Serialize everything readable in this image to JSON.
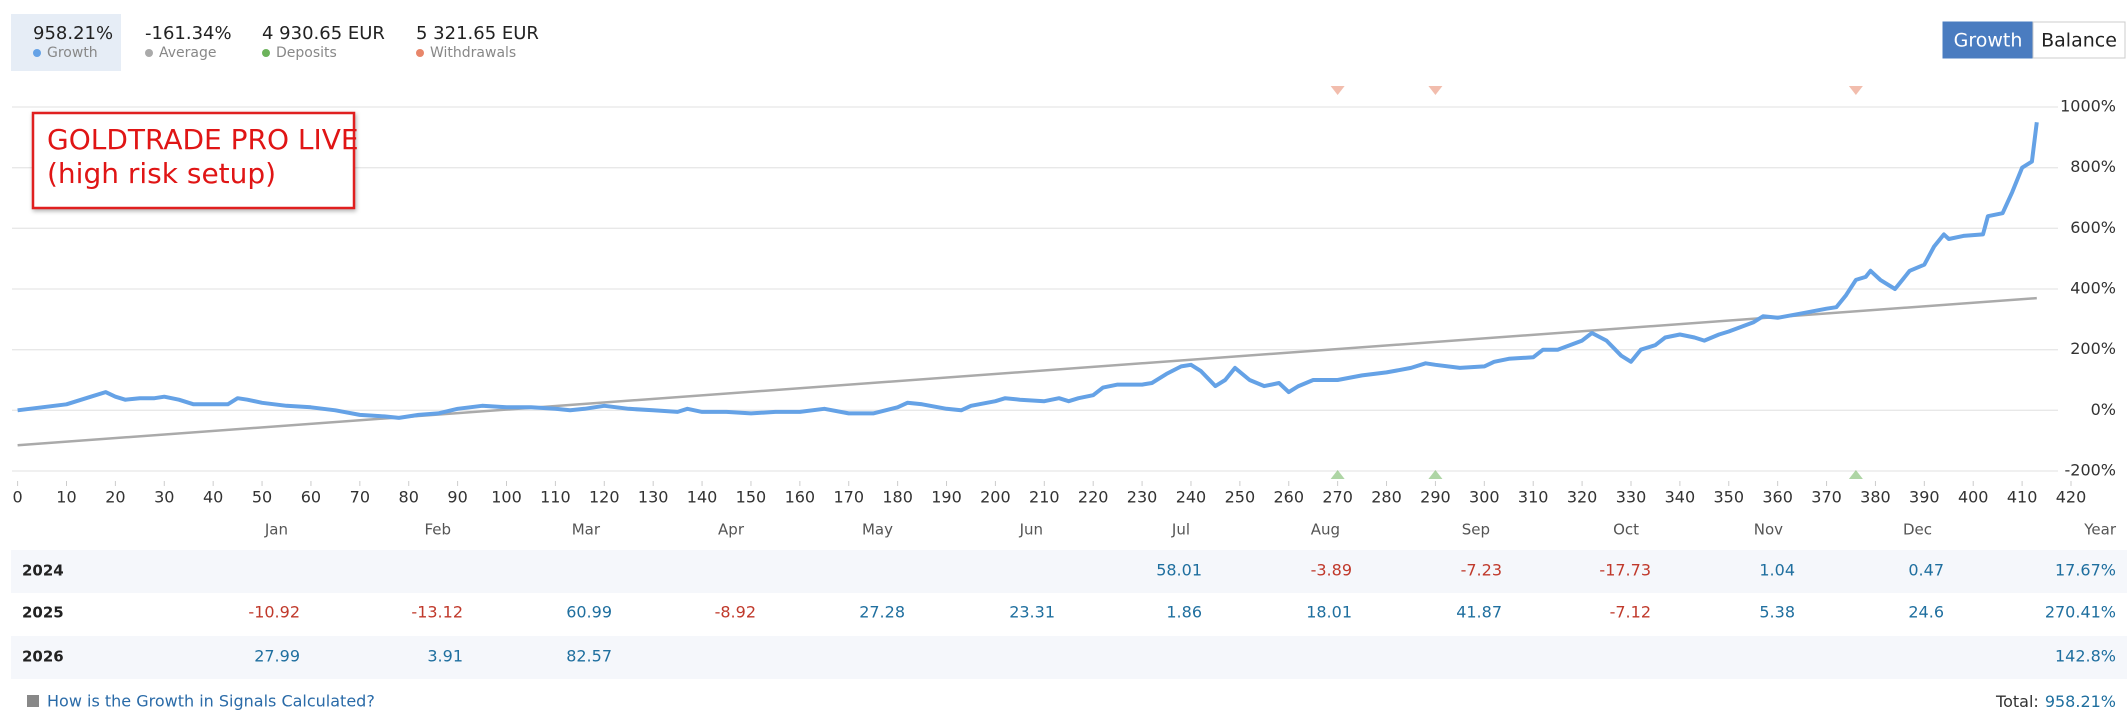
{
  "chart_data": {
    "type": "line",
    "annotation": [
      "GOLDTRADE PRO LIVE",
      "(high risk setup)"
    ],
    "xlim": [
      0,
      420
    ],
    "xticks": [
      0,
      10,
      20,
      30,
      40,
      50,
      60,
      70,
      80,
      90,
      100,
      110,
      120,
      130,
      140,
      150,
      160,
      170,
      180,
      190,
      200,
      210,
      220,
      230,
      240,
      250,
      260,
      270,
      280,
      290,
      300,
      310,
      320,
      330,
      340,
      350,
      360,
      370,
      380,
      390,
      400,
      410,
      420
    ],
    "ylim": [
      -200,
      1000
    ],
    "yticks": [
      {
        "value": -200,
        "label": "-200%"
      },
      {
        "value": 0,
        "label": "0%"
      },
      {
        "value": 200,
        "label": "200%"
      },
      {
        "value": 400,
        "label": "400%"
      },
      {
        "value": 600,
        "label": "600%"
      },
      {
        "value": 800,
        "label": "800%"
      },
      {
        "value": 1000,
        "label": "1000%"
      }
    ],
    "grid": true,
    "series": [
      {
        "name": "Growth",
        "summary": "958.21%",
        "color": "#65a2e6",
        "x": [
          0,
          5,
          10,
          15,
          18,
          20,
          22,
          25,
          28,
          30,
          33,
          36,
          40,
          43,
          45,
          47,
          50,
          55,
          60,
          65,
          70,
          75,
          78,
          82,
          86,
          90,
          95,
          100,
          105,
          110,
          113,
          116,
          120,
          125,
          130,
          135,
          137,
          140,
          145,
          150,
          155,
          160,
          165,
          170,
          175,
          180,
          182,
          185,
          190,
          193,
          195,
          200,
          202,
          205,
          210,
          213,
          215,
          217,
          220,
          222,
          225,
          230,
          232,
          235,
          238,
          240,
          242,
          245,
          247,
          249,
          252,
          255,
          258,
          260,
          262,
          265,
          270,
          275,
          280,
          285,
          288,
          290,
          295,
          300,
          302,
          305,
          310,
          312,
          315,
          320,
          322,
          325,
          328,
          330,
          332,
          335,
          337,
          340,
          343,
          345,
          348,
          350,
          355,
          357,
          360,
          365,
          370,
          372,
          374,
          376,
          378,
          379,
          381,
          384,
          387,
          390,
          392,
          394,
          395,
          398,
          402,
          403,
          406,
          408,
          410,
          412,
          413
        ],
        "values": [
          0,
          10,
          20,
          45,
          60,
          45,
          35,
          40,
          40,
          45,
          35,
          20,
          20,
          20,
          40,
          35,
          25,
          15,
          10,
          0,
          -15,
          -20,
          -25,
          -15,
          -10,
          5,
          15,
          10,
          10,
          5,
          0,
          5,
          15,
          5,
          0,
          -5,
          5,
          -5,
          -5,
          -10,
          -5,
          -5,
          5,
          -10,
          -10,
          10,
          25,
          20,
          5,
          0,
          15,
          30,
          40,
          35,
          30,
          40,
          30,
          40,
          50,
          75,
          85,
          85,
          90,
          120,
          145,
          150,
          130,
          80,
          100,
          140,
          100,
          80,
          90,
          60,
          80,
          100,
          100,
          115,
          125,
          140,
          155,
          150,
          140,
          145,
          160,
          170,
          175,
          200,
          200,
          230,
          255,
          230,
          180,
          160,
          200,
          215,
          240,
          250,
          240,
          230,
          250,
          260,
          290,
          310,
          305,
          320,
          335,
          340,
          380,
          430,
          440,
          460,
          430,
          400,
          460,
          480,
          540,
          580,
          565,
          575,
          580,
          640,
          650,
          720,
          800,
          820,
          950
        ]
      },
      {
        "name": "Average",
        "summary": "-161.34%",
        "color": "#aaaaaa",
        "x": [
          0,
          413
        ],
        "values": [
          -115,
          370
        ]
      }
    ],
    "markers": [
      {
        "name": "Deposits",
        "summary": "4 930.65 EUR",
        "color": "#6cb35b",
        "side": "bottom",
        "x": [
          270,
          290,
          376
        ]
      },
      {
        "name": "Withdrawals",
        "summary": "5 321.65 EUR",
        "color": "#e8866a",
        "side": "top",
        "x": [
          270,
          290,
          376
        ]
      }
    ]
  },
  "buttons": [
    "Growth",
    "Balance"
  ],
  "table": {
    "columns": [
      "Jan",
      "Feb",
      "Mar",
      "Apr",
      "May",
      "Jun",
      "Jul",
      "Aug",
      "Sep",
      "Oct",
      "Nov",
      "Dec",
      "Year"
    ],
    "rows": [
      {
        "year": "2024",
        "months": [
          null,
          null,
          null,
          null,
          null,
          null,
          58.01,
          -3.89,
          -7.23,
          -17.73,
          1.04,
          0.47
        ],
        "total": "17.67%"
      },
      {
        "year": "2025",
        "months": [
          -10.92,
          -13.12,
          60.99,
          -8.92,
          27.28,
          23.31,
          1.86,
          18.01,
          41.87,
          -7.12,
          5.38,
          24.6
        ],
        "total": "270.41%"
      },
      {
        "year": "2026",
        "months": [
          27.99,
          3.91,
          82.57,
          null,
          null,
          null,
          null,
          null,
          null,
          null,
          null,
          null
        ],
        "total": "142.8%"
      }
    ]
  },
  "footer": {
    "link": "How is the Growth in Signals Calculated?",
    "total_label": "Total:",
    "total": "958.21%"
  }
}
